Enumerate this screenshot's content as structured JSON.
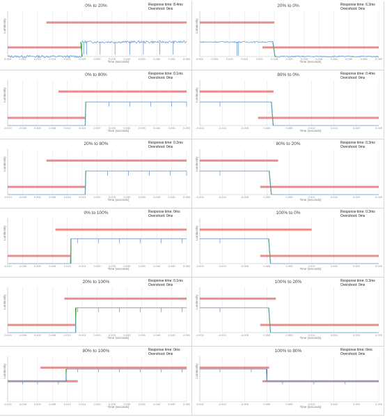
{
  "chart_data": [
    {
      "type": "line",
      "title": "0% to 20%",
      "response": "Response time: 8.4ms",
      "overshoot": "Overshoot: 0ms",
      "xlabel": "Time (seconds)",
      "ylabel": "Luminosity",
      "xticks": [
        "0.000",
        "0.005",
        "0.010",
        "0.015",
        "0.020",
        "0.025",
        "0.030",
        "0.035",
        "0.040",
        "0.045",
        "0.050",
        "0.055",
        "0.060"
      ],
      "xlim": [
        0,
        0.06
      ],
      "ylim": [
        0,
        1
      ],
      "start": 0.0,
      "end": 0.32,
      "step_x": 0.025,
      "step_x_end": 0.0245,
      "ref_low": [
        0.0,
        0.025,
        0.2
      ],
      "ref_high": [
        0.013,
        0.06,
        0.75
      ],
      "dips": [
        0.0255,
        0.0265,
        0.031,
        0.036,
        0.041,
        0.0455,
        0.051,
        0.0555
      ],
      "dip_depth": 0.28,
      "noise": 0.05
    },
    {
      "type": "line",
      "title": "20% to 0%",
      "response": "Response time: 6.3ms",
      "overshoot": "Overshoot: 0ms",
      "xlabel": "Time (seconds)",
      "ylabel": "Luminosity",
      "xticks": [
        "0.000",
        "0.005",
        "0.010",
        "0.015",
        "0.020",
        "0.025",
        "0.030",
        "0.035",
        "0.040",
        "0.045",
        "0.050",
        "0.055",
        "0.060"
      ],
      "xlim": [
        0,
        0.06
      ],
      "ylim": [
        0,
        1
      ],
      "start": 0.32,
      "end": 0.0,
      "step_x": 0.0245,
      "step_x_end": 0.0252,
      "ref_high": [
        0.0,
        0.025,
        0.75
      ],
      "ref_low": [
        0.021,
        0.06,
        0.2
      ],
      "dips": [
        0.013,
        0.0125
      ],
      "dip_depth": 0.3,
      "noise": 0.03
    },
    {
      "type": "line",
      "title": "0% to 80%",
      "response": "Response time: 0.1ms",
      "overshoot": "Overshoot: 0ms",
      "xlabel": "Time (seconds)",
      "ylabel": "Luminosity",
      "xticks": [
        "-0.010",
        "-0.005",
        "0.000",
        "0.005",
        "0.010",
        "0.015",
        "0.020",
        "0.025",
        "0.030",
        "0.035",
        "0.040",
        "0.045",
        "0.050"
      ],
      "xlim": [
        -0.01,
        0.05
      ],
      "ylim": [
        0,
        1
      ],
      "start": 0.0,
      "end": 0.52,
      "step_x": 0.016,
      "step_x_end": 0.0162,
      "ref_low": [
        -0.01,
        0.016,
        0.17
      ],
      "ref_high": [
        0.007,
        0.05,
        0.75
      ],
      "dips": [
        0.024,
        0.031,
        0.038,
        0.045,
        0.05
      ],
      "dip_depth": 0.1,
      "noise": 0.0
    },
    {
      "type": "line",
      "title": "80% to 0%",
      "response": "Response time: 0.4ms",
      "overshoot": "Overshoot: 0ms",
      "xlabel": "Time (seconds)",
      "ylabel": "Luminosity",
      "xticks": [
        "-0.015",
        "-0.010",
        "-0.005",
        "0.000",
        "0.005",
        "0.010",
        "0.015",
        "0.020",
        "0.025"
      ],
      "xlim": [
        -0.015,
        0.025
      ],
      "ylim": [
        0,
        1
      ],
      "start": 0.52,
      "end": 0.0,
      "step_x": 0.001,
      "step_x_end": 0.0014,
      "ref_high": [
        -0.015,
        0.0015,
        0.75
      ],
      "ref_low": [
        -0.002,
        0.025,
        0.17
      ],
      "dips": [
        -0.0105
      ],
      "dip_depth": 0.1,
      "noise": 0.0
    },
    {
      "type": "line",
      "title": "20% to 80%",
      "response": "Response time: 0.2ms",
      "overshoot": "Overshoot: 0ms",
      "xlabel": "Time (seconds)",
      "ylabel": "Luminosity",
      "xticks": [
        "-0.010",
        "-0.005",
        "0.000",
        "0.005",
        "0.010",
        "0.015",
        "0.020",
        "0.025",
        "0.030",
        "0.035",
        "0.040",
        "0.045",
        "0.050"
      ],
      "xlim": [
        -0.01,
        0.05
      ],
      "ylim": [
        0,
        1
      ],
      "start": 0.0,
      "end": 0.52,
      "step_x": 0.016,
      "step_x_end": 0.0162,
      "ref_low": [
        -0.01,
        0.016,
        0.17
      ],
      "ref_high": [
        0.003,
        0.05,
        0.75
      ],
      "dips": [
        0.0235,
        0.0305,
        0.0375,
        0.0445,
        0.05
      ],
      "dip_depth": 0.1,
      "noise": 0.0
    },
    {
      "type": "line",
      "title": "80% to 20%",
      "response": "Response time: 0.3ms",
      "overshoot": "Overshoot: 0ms",
      "xlabel": "Time (seconds)",
      "ylabel": "Luminosity",
      "xticks": [
        "-0.015",
        "-0.010",
        "-0.005",
        "0.000",
        "0.005",
        "0.010",
        "0.015",
        "0.020",
        "0.025"
      ],
      "xlim": [
        -0.015,
        0.025
      ],
      "ylim": [
        0,
        1
      ],
      "start": 0.52,
      "end": 0.0,
      "step_x": 0.0005,
      "step_x_end": 0.001,
      "ref_high": [
        -0.015,
        0.0025,
        0.75
      ],
      "ref_low": [
        -0.0015,
        0.025,
        0.17
      ],
      "dips": [
        -0.0105
      ],
      "dip_depth": 0.1,
      "noise": 0.0
    },
    {
      "type": "line",
      "title": "0% to 100%",
      "response": "Response time: 0ms",
      "overshoot": "Overshoot: 0ms",
      "xlabel": "Time (seconds)",
      "ylabel": "Luminosity",
      "xticks": [
        "-0.010",
        "-0.005",
        "0.000",
        "0.005",
        "0.010",
        "0.015",
        "0.020",
        "0.025",
        "0.030",
        "0.035",
        "0.040",
        "0.045",
        "0.050"
      ],
      "xlim": [
        -0.01,
        0.05
      ],
      "ylim": [
        0,
        1
      ],
      "start": 0.0,
      "end": 0.55,
      "step_x": 0.0112,
      "step_x_end": 0.0112,
      "ref_low": [
        -0.01,
        0.0112,
        0.17
      ],
      "ref_high": [
        0.006,
        0.05,
        0.75
      ],
      "dips": [
        0.0135,
        0.0205,
        0.0275,
        0.0345,
        0.0415,
        0.0485
      ],
      "dip_depth": 0.1,
      "noise": 0.0
    },
    {
      "type": "line",
      "title": "100% to 0%",
      "response": "Response time: 0.3ms",
      "overshoot": "Overshoot: 0ms",
      "xlabel": "Time (seconds)",
      "ylabel": "Luminosity",
      "xticks": [
        "-0.015",
        "-0.010",
        "-0.005",
        "0.000",
        "0.005",
        "0.010",
        "0.015",
        "0.020",
        "0.025"
      ],
      "xlim": [
        -0.015,
        0.025
      ],
      "ylim": [
        0,
        1
      ],
      "start": 0.55,
      "end": 0.0,
      "step_x": 0.0004,
      "step_x_end": 0.0008,
      "ref_high": [
        -0.015,
        0.01,
        0.75
      ],
      "ref_low": [
        -0.0015,
        0.025,
        0.17
      ],
      "dips": [
        -0.0105
      ],
      "dip_depth": 0.1,
      "noise": 0.0
    },
    {
      "type": "line",
      "title": "20% to 100%",
      "response": "Response time: 0.1ms",
      "overshoot": "Overshoot: 0ms",
      "xlabel": "Time (seconds)",
      "ylabel": "Luminosity",
      "xticks": [
        "-0.010",
        "-0.005",
        "0.000",
        "0.005",
        "0.010",
        "0.015",
        "0.020",
        "0.025",
        "0.030",
        "0.035",
        "0.040",
        "0.045",
        "0.050"
      ],
      "xlim": [
        -0.01,
        0.05
      ],
      "ylim": [
        0,
        1
      ],
      "start": 0.0,
      "end": 0.55,
      "step_x": 0.0128,
      "step_x_end": 0.0128,
      "ref_low": [
        -0.01,
        0.0128,
        0.17
      ],
      "ref_high": [
        0.009,
        0.05,
        0.75
      ],
      "dips": [
        0.0135,
        0.0205,
        0.0275,
        0.0345,
        0.0415,
        0.0485
      ],
      "dip_depth": 0.1,
      "noise": 0.0
    },
    {
      "type": "line",
      "title": "100% to 20%",
      "response": "Response time: 0.3ms",
      "overshoot": "Overshoot: 0ms",
      "xlabel": "Time (seconds)",
      "ylabel": "Luminosity",
      "xticks": [
        "-0.015",
        "-0.010",
        "-0.005",
        "0.000",
        "0.005",
        "0.010",
        "0.015",
        "0.020",
        "0.025"
      ],
      "xlim": [
        -0.015,
        0.025
      ],
      "ylim": [
        0,
        1
      ],
      "start": 0.55,
      "end": 0.0,
      "step_x": 0.0004,
      "step_x_end": 0.0008,
      "ref_high": [
        -0.015,
        0.002,
        0.75
      ],
      "ref_low": [
        -0.0015,
        0.025,
        0.17
      ],
      "dips": [
        -0.0105
      ],
      "dip_depth": 0.1,
      "noise": 0.0
    },
    {
      "type": "line",
      "title": "80% to 100%",
      "response": "Response time: 0ms",
      "overshoot": "Overshoot: 0ms",
      "xlabel": "Time (seconds)",
      "ylabel": "Luminosity",
      "xticks": [
        "-0.010",
        "-0.005",
        "0.000",
        "0.005",
        "0.010",
        "0.015",
        "0.020",
        "0.025",
        "0.030",
        "0.035",
        "0.040",
        "0.045",
        "0.050"
      ],
      "xlim": [
        -0.01,
        0.05
      ],
      "ylim": [
        0,
        1
      ],
      "start": 0.45,
      "end": 0.72,
      "step_x": 0.0096,
      "step_x_end": 0.0096,
      "ref_low": [
        -0.01,
        0.0135,
        0.45
      ],
      "ref_high": [
        0.001,
        0.05,
        0.75
      ],
      "dips": [
        -0.005,
        0.0,
        0.007,
        0.0135,
        0.0205,
        0.0275,
        0.0345,
        0.0415,
        0.0485
      ],
      "dip_depth": 0.07,
      "noise": 0.0
    },
    {
      "type": "line",
      "title": "100% to 80%",
      "response": "Response time: 0ms",
      "overshoot": "Overshoot: 0ms",
      "xlabel": "Time (seconds)",
      "ylabel": "Luminosity",
      "xticks": [
        "-0.015",
        "-0.010",
        "-0.005",
        "0.000",
        "0.005",
        "0.010",
        "0.015",
        "0.020",
        "0.025"
      ],
      "xlim": [
        -0.015,
        0.025
      ],
      "ylim": [
        0,
        1
      ],
      "start": 0.72,
      "end": 0.45,
      "step_x": 0.0,
      "step_x_end": 0.0,
      "ref_high": [
        -0.015,
        0.0005,
        0.75
      ],
      "ref_low": [
        -0.001,
        0.025,
        0.45
      ],
      "dips": [
        -0.0105,
        -0.0035,
        0.0035,
        0.0105,
        0.0175
      ],
      "dip_depth": 0.07,
      "noise": 0.0
    }
  ]
}
